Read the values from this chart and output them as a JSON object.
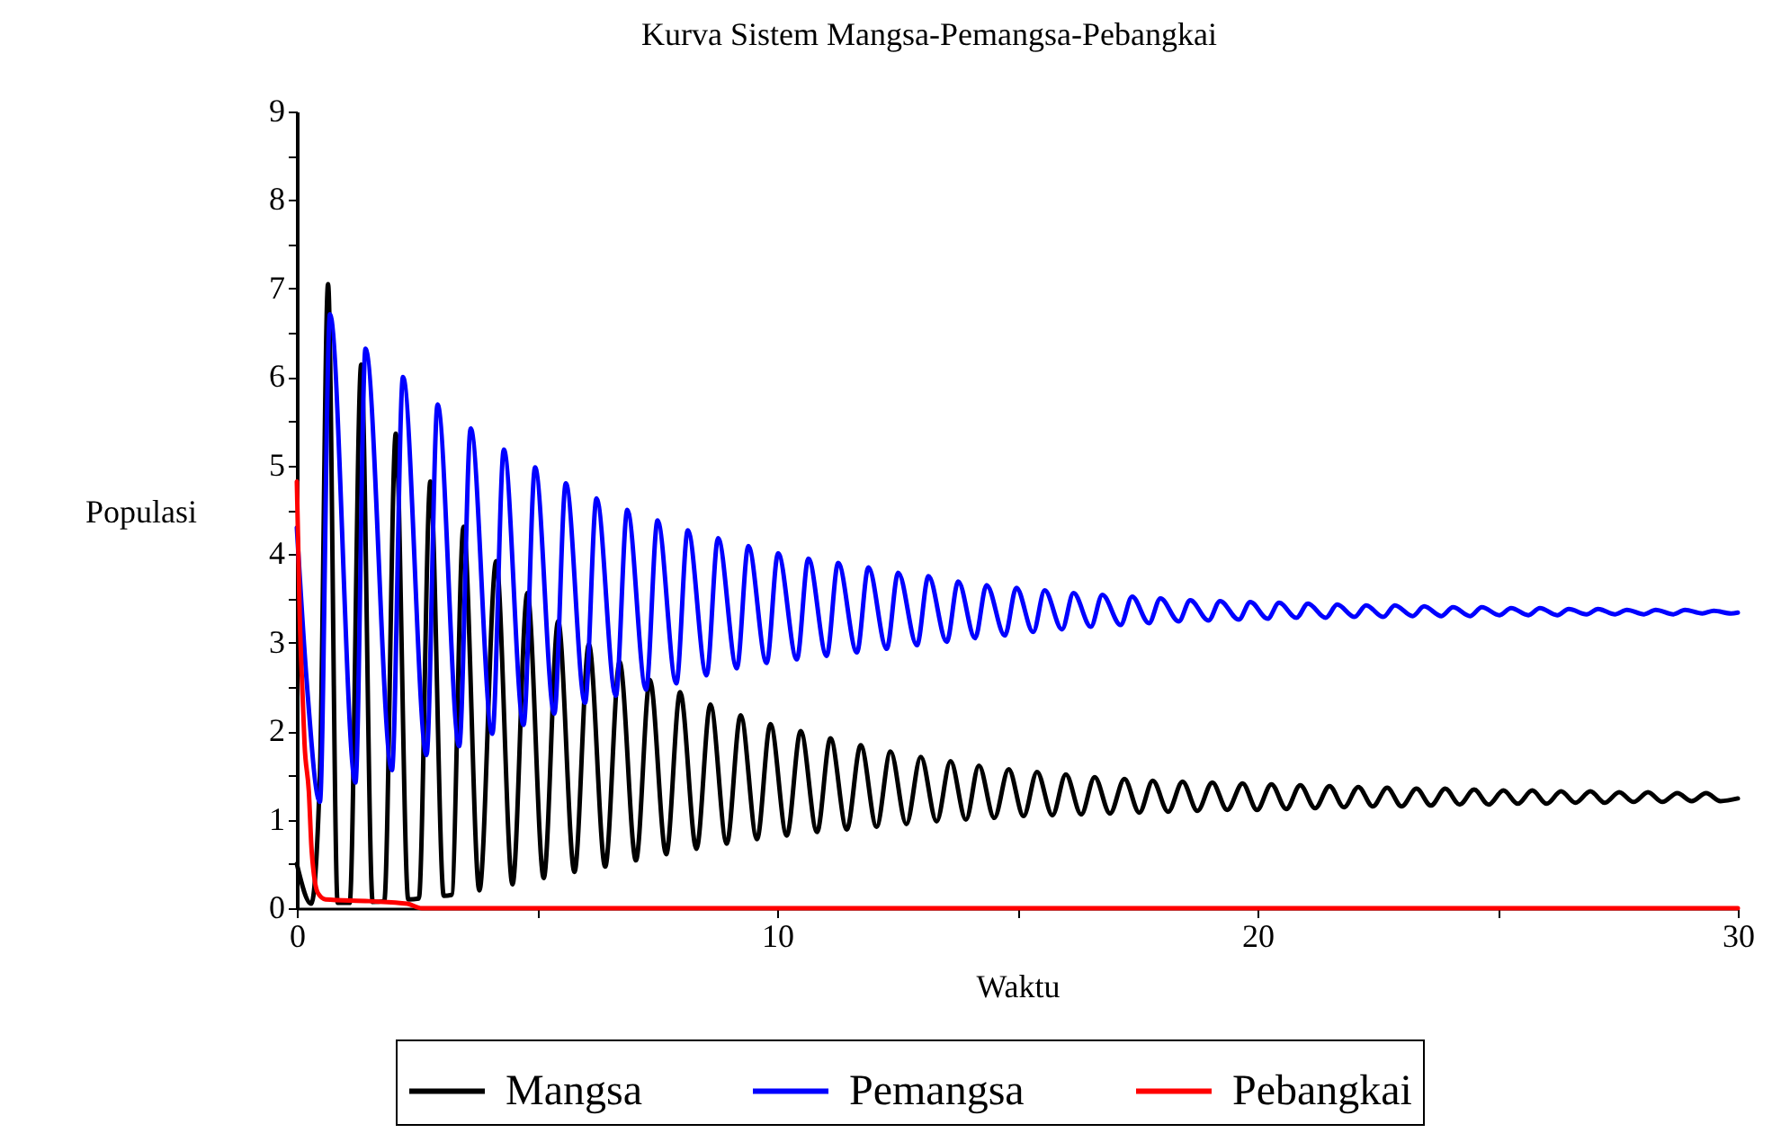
{
  "chart_data": {
    "type": "line",
    "title": "Kurva Sistem Mangsa-Pemangsa-Pebangkai",
    "xlabel": "Waktu",
    "ylabel": "Populasi",
    "xlim": [
      0,
      30
    ],
    "ylim": [
      0,
      9
    ],
    "xticks": [
      0,
      {
        "value": 5,
        "label": null
      },
      10,
      {
        "value": 15,
        "label": null
      },
      20,
      {
        "value": 25,
        "label": null
      },
      30
    ],
    "yticks": [
      0,
      {
        "value": 0.5,
        "label": null
      },
      1,
      {
        "value": 1.5,
        "label": null
      },
      2,
      {
        "value": 2.5,
        "label": null
      },
      3,
      {
        "value": 3.5,
        "label": null
      },
      4,
      {
        "value": 4.5,
        "label": null
      },
      5,
      {
        "value": 5.5,
        "label": null
      },
      6,
      {
        "value": 6.5,
        "label": null
      },
      7,
      {
        "value": 7.5,
        "label": null
      },
      8,
      {
        "value": 8.5,
        "label": null
      },
      9
    ],
    "legend": "bottom",
    "series": [
      {
        "name": "Mangsa",
        "color": "#000000",
        "x": [
          0,
          0.3,
          0.48,
          0.65,
          0.85,
          1.1,
          1.34,
          1.58,
          1.82,
          2.06,
          2.32,
          2.54,
          2.78,
          3.06,
          3.22,
          3.47,
          3.8,
          4.15,
          4.49,
          4.8,
          5.14,
          5.44,
          5.78,
          6.08,
          6.42,
          6.72,
          7.06,
          7.35,
          7.69,
          7.98,
          8.32,
          8.61,
          8.95,
          9.24,
          9.58,
          9.86,
          10.2,
          10.49,
          10.83,
          11.11,
          11.45,
          11.74,
          12.07,
          12.36,
          12.69,
          12.99,
          13.32,
          13.61,
          13.93,
          14.2,
          14.52,
          14.82,
          15.13,
          15.41,
          15.73,
          16.01,
          16.33,
          16.61,
          16.93,
          17.23,
          17.54,
          17.82,
          18.14,
          18.44,
          18.75,
          19.06,
          19.37,
          19.69,
          19.99,
          20.29,
          20.6,
          20.89,
          21.2,
          21.5,
          21.8,
          22.1,
          22.4,
          22.7,
          23.0,
          23.31,
          23.61,
          23.91,
          24.21,
          24.51,
          24.81,
          25.12,
          25.42,
          25.72,
          26.02,
          26.32,
          26.62,
          26.93,
          27.23,
          27.53,
          27.83,
          28.13,
          28.43,
          28.74,
          29.04,
          29.34,
          29.64,
          30
        ],
        "values": [
          0.5,
          0.05,
          1.5,
          7.05,
          0.06,
          0.06,
          6.14,
          0.07,
          0.08,
          5.36,
          0.1,
          0.11,
          4.82,
          0.14,
          0.15,
          4.31,
          0.2,
          3.92,
          0.27,
          3.56,
          0.34,
          3.24,
          0.41,
          2.98,
          0.47,
          2.78,
          0.54,
          2.58,
          0.61,
          2.44,
          0.67,
          2.3,
          0.73,
          2.18,
          0.78,
          2.08,
          0.82,
          2.0,
          0.86,
          1.92,
          0.89,
          1.84,
          0.92,
          1.77,
          0.95,
          1.71,
          0.98,
          1.66,
          1.0,
          1.61,
          1.02,
          1.57,
          1.04,
          1.54,
          1.05,
          1.51,
          1.06,
          1.48,
          1.07,
          1.46,
          1.08,
          1.44,
          1.09,
          1.43,
          1.1,
          1.42,
          1.11,
          1.41,
          1.11,
          1.4,
          1.12,
          1.39,
          1.13,
          1.38,
          1.14,
          1.37,
          1.15,
          1.36,
          1.15,
          1.35,
          1.16,
          1.35,
          1.17,
          1.34,
          1.17,
          1.33,
          1.18,
          1.33,
          1.18,
          1.32,
          1.19,
          1.32,
          1.19,
          1.31,
          1.2,
          1.31,
          1.2,
          1.3,
          1.21,
          1.3,
          1.21,
          1.24
        ]
      },
      {
        "name": "Pemangsa",
        "color": "#0000ff",
        "x": [
          0,
          0.2,
          0.48,
          0.69,
          1.22,
          1.43,
          1.98,
          2.21,
          2.7,
          2.93,
          3.38,
          3.62,
          4.07,
          4.31,
          4.72,
          4.96,
          5.36,
          5.6,
          6.0,
          6.24,
          6.64,
          6.88,
          7.27,
          7.51,
          7.9,
          8.14,
          8.53,
          8.77,
          9.16,
          9.4,
          9.78,
          10.02,
          10.41,
          10.65,
          11.03,
          11.27,
          11.66,
          11.9,
          12.28,
          12.52,
          12.91,
          13.15,
          13.53,
          13.77,
          14.12,
          14.36,
          14.74,
          14.98,
          15.33,
          15.57,
          15.93,
          16.17,
          16.53,
          16.77,
          17.15,
          17.39,
          17.74,
          17.98,
          18.36,
          18.6,
          18.98,
          19.22,
          19.61,
          19.85,
          20.21,
          20.45,
          20.81,
          21.05,
          21.42,
          21.66,
          22.02,
          22.26,
          22.62,
          22.86,
          23.23,
          23.47,
          23.83,
          24.07,
          24.43,
          24.67,
          25.04,
          25.28,
          25.64,
          25.88,
          26.24,
          26.48,
          26.85,
          27.09,
          27.45,
          27.69,
          28.05,
          28.29,
          28.66,
          28.9,
          29.26,
          29.5,
          29.86,
          30
        ],
        "values": [
          4.3,
          2.6,
          1.2,
          6.71,
          1.42,
          6.32,
          1.56,
          6.0,
          1.73,
          5.69,
          1.83,
          5.42,
          1.97,
          5.18,
          2.07,
          4.98,
          2.2,
          4.8,
          2.32,
          4.63,
          2.4,
          4.5,
          2.47,
          4.38,
          2.54,
          4.27,
          2.63,
          4.18,
          2.71,
          4.09,
          2.77,
          4.01,
          2.81,
          3.95,
          2.85,
          3.9,
          2.89,
          3.85,
          2.93,
          3.79,
          2.97,
          3.75,
          3.01,
          3.69,
          3.05,
          3.65,
          3.08,
          3.62,
          3.12,
          3.59,
          3.15,
          3.56,
          3.18,
          3.54,
          3.2,
          3.52,
          3.22,
          3.5,
          3.24,
          3.48,
          3.25,
          3.47,
          3.26,
          3.46,
          3.27,
          3.45,
          3.28,
          3.44,
          3.28,
          3.43,
          3.29,
          3.42,
          3.29,
          3.42,
          3.3,
          3.41,
          3.3,
          3.4,
          3.3,
          3.4,
          3.31,
          3.39,
          3.31,
          3.39,
          3.31,
          3.38,
          3.32,
          3.38,
          3.32,
          3.37,
          3.32,
          3.37,
          3.32,
          3.37,
          3.33,
          3.36,
          3.33,
          3.34
        ]
      },
      {
        "name": "Pebangkai",
        "color": "#ff0000",
        "x": [
          0,
          0.06,
          0.12,
          0.16,
          0.25,
          0.31,
          0.44,
          0.6,
          1.5,
          2.3,
          2.6,
          30
        ],
        "values": [
          4.82,
          3.3,
          2.4,
          1.86,
          1.32,
          0.64,
          0.17,
          0.1,
          0.08,
          0.05,
          0,
          0
        ]
      }
    ]
  }
}
